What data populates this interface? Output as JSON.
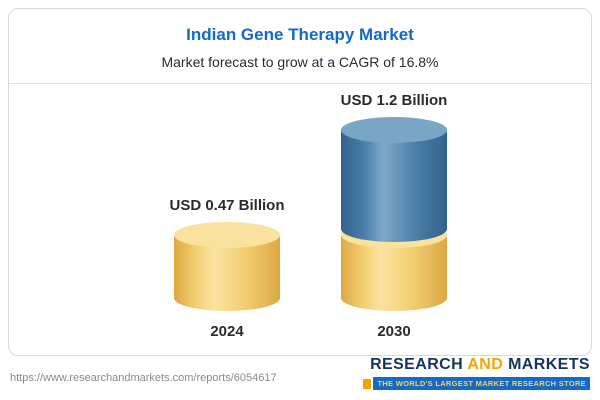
{
  "header": {
    "title": "Indian Gene Therapy Market",
    "subtitle": "Market forecast to grow at a CAGR of 16.8%"
  },
  "chart_data": {
    "type": "bar",
    "title": "Indian Gene Therapy Market",
    "subtitle": "Market forecast to grow at a CAGR of 16.8%",
    "categories": [
      "2024",
      "2030"
    ],
    "values": [
      0.47,
      1.2
    ],
    "unit": "USD Billion",
    "value_labels": [
      "USD 0.47 Billion",
      "USD 1.2 Billion"
    ],
    "cagr_pct": 16.8,
    "ylim": [
      0,
      1.3
    ],
    "grid": false,
    "legend": false,
    "bar_style": "3d-cylinder",
    "colors": {
      "title_blue": "#1569c7",
      "gold_dark": "#dca844",
      "gold_mid": "#f2cd6f",
      "gold_light": "#fae3a0",
      "gold_cap": "#f8e29e",
      "blue_dark": "#32638c",
      "blue_mid": "#4a7fa8",
      "blue_light": "#7fa9c9",
      "blue_cap": "#79a5c6",
      "navy": "#16355e",
      "orange": "#f0a500"
    }
  },
  "footer": {
    "url": "https://www.researchandmarkets.com/reports/6054617",
    "logo": {
      "word1": "RESEARCH",
      "word2": "AND",
      "word3": "MARKETS",
      "tagline": "THE WORLD'S LARGEST MARKET RESEARCH STORE"
    }
  }
}
